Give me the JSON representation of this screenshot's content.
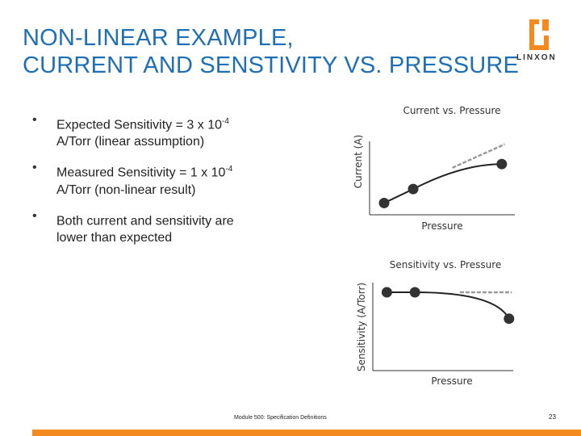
{
  "title": {
    "line1": "NON-LINEAR EXAMPLE,",
    "line2": "CURRENT AND SENSTIVITY VS. PRESSURE"
  },
  "logo": {
    "word": "LINXON",
    "icon": "linxon-logo-icon",
    "color": "#f28a1e"
  },
  "bullets": [
    {
      "marker": "•",
      "line1_pre": "Expected Sensitivity = 3 x 10",
      "sup": "-4",
      "line2": "A/Torr (linear assumption)"
    },
    {
      "marker": "•",
      "line1_pre": "Measured Sensitivity = 1 x 10",
      "sup": "-4",
      "line2": "A/Torr (non-linear result)"
    },
    {
      "marker": "•",
      "line1_pre": "Both current and sensitivity are",
      "sup": "",
      "line2": "lower than expected"
    }
  ],
  "chart_data": [
    {
      "type": "line",
      "title": "Current vs. Pressure",
      "xlabel": "Pressure",
      "ylabel": "Current (A)",
      "xlim": [
        0,
        10
      ],
      "ylim": [
        0,
        10
      ],
      "grid": false,
      "series": [
        {
          "style": "measured",
          "x": [
            1,
            3,
            9.1
          ],
          "y": [
            1.6,
            3.5,
            6.9
          ],
          "color": "#222222"
        },
        {
          "style": "expected-linear",
          "x": [
            5.7,
            9.3
          ],
          "y": [
            6.4,
            9.6
          ],
          "color": "#9a9a9a"
        }
      ]
    },
    {
      "type": "line",
      "title": "Sensitivity vs. Pressure",
      "xlabel": "Pressure",
      "ylabel": "Sensitivity (A/Torr)",
      "xlim": [
        0,
        10
      ],
      "ylim": [
        0,
        10
      ],
      "grid": false,
      "series": [
        {
          "style": "measured",
          "x": [
            1,
            3,
            9.7
          ],
          "y": [
            8.9,
            8.9,
            5.9
          ],
          "color": "#222222"
        },
        {
          "style": "expected-linear",
          "x": [
            6.2,
            9.9
          ],
          "y": [
            8.9,
            8.9
          ],
          "color": "#9a9a9a"
        }
      ]
    }
  ],
  "footer": {
    "module": "Module 500: Specification Definitions",
    "page": "23",
    "bar_color": "#f28a1e"
  }
}
